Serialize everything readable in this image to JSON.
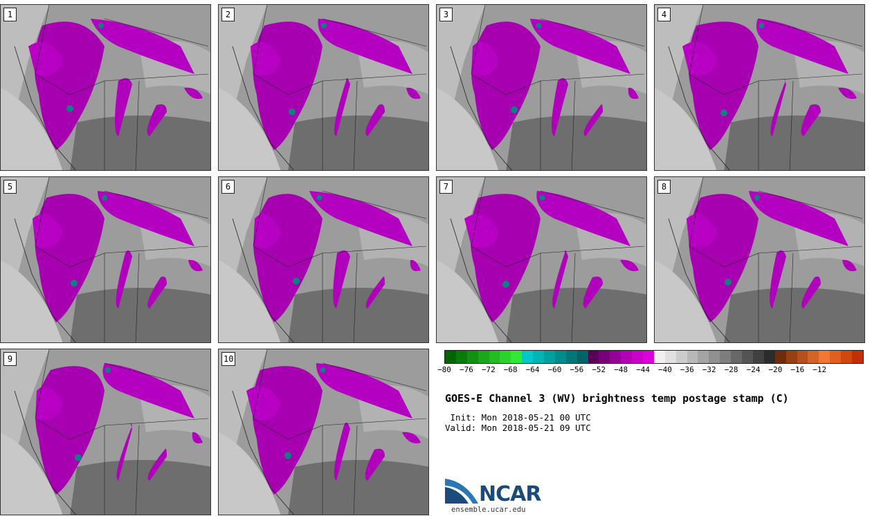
{
  "panels": [
    {
      "label": "1"
    },
    {
      "label": "2"
    },
    {
      "label": "3"
    },
    {
      "label": "4"
    },
    {
      "label": "5"
    },
    {
      "label": "6"
    },
    {
      "label": "7"
    },
    {
      "label": "8"
    },
    {
      "label": "9"
    },
    {
      "label": "10"
    }
  ],
  "colorbar": {
    "colors": [
      "#006400",
      "#0a7a0a",
      "#129012",
      "#1aa61a",
      "#22bc22",
      "#2ad22a",
      "#32e832",
      "#00c8c8",
      "#00b4b4",
      "#00a0a0",
      "#008c8c",
      "#007878",
      "#006464",
      "#5a005a",
      "#780078",
      "#960096",
      "#b400b4",
      "#c800c8",
      "#dc00dc",
      "#f0f0f0",
      "#e0e0e0",
      "#cccccc",
      "#b8b8b8",
      "#a4a4a4",
      "#909090",
      "#7c7c7c",
      "#686868",
      "#545454",
      "#404040",
      "#2c2c2c",
      "#6e2d0a",
      "#964014",
      "#b4501e",
      "#d26428",
      "#f07832",
      "#e06020",
      "#d04810",
      "#c03000"
    ],
    "tick_labels": [
      "−80",
      "−76",
      "−72",
      "−68",
      "−64",
      "−60",
      "−56",
      "−52",
      "−48",
      "−44",
      "−40",
      "−36",
      "−32",
      "−28",
      "−24",
      "−20",
      "−16",
      "−12"
    ]
  },
  "title": "GOES-E Channel 3 (WV) brightness temp postage stamp (C)",
  "init": " Init: Mon 2018-05-21 00 UTC",
  "valid": "Valid: Mon 2018-05-21 09 UTC",
  "logo": {
    "text": "NCAR",
    "url": "ensemble.ucar.edu"
  }
}
